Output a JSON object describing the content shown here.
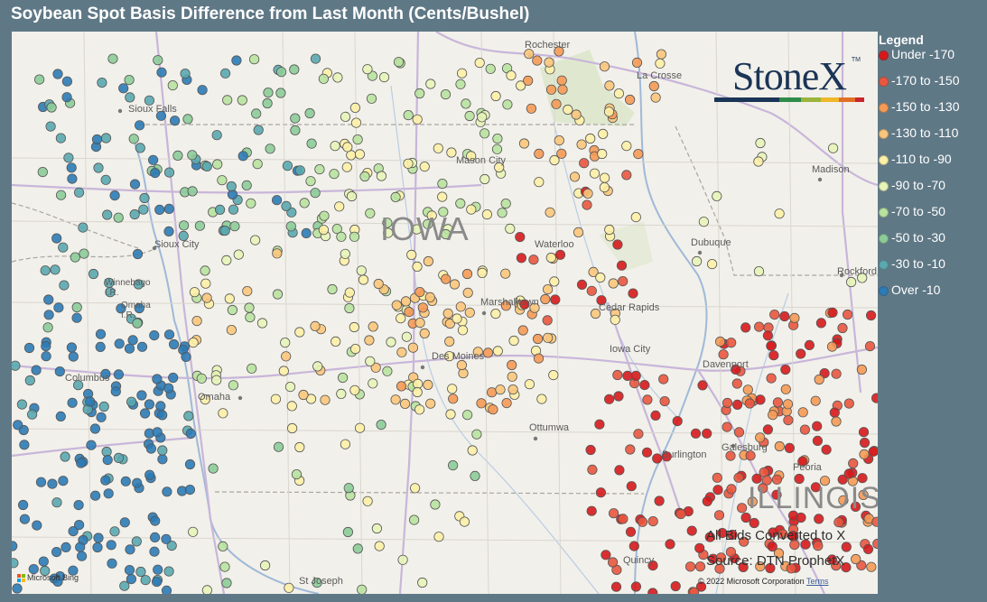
{
  "title": "Soybean Spot Basis Difference from Last Month (Cents/Bushel)",
  "legend": {
    "title": "Legend",
    "items": [
      {
        "label": "Under -170",
        "color": "#d7191c"
      },
      {
        "label": "-170 to -150",
        "color": "#e9573f"
      },
      {
        "label": "-150 to -130",
        "color": "#f59a55"
      },
      {
        "label": "-130 to -110",
        "color": "#fbc67b"
      },
      {
        "label": "-110 to -90",
        "color": "#fdf0a7"
      },
      {
        "label": "-90 to -70",
        "color": "#e7f4b8"
      },
      {
        "label": "-70 to -50",
        "color": "#b9e2a0"
      },
      {
        "label": "-50 to -30",
        "color": "#8ccc99"
      },
      {
        "label": "-30 to -10",
        "color": "#5aa8b0"
      },
      {
        "label": "Over -10",
        "color": "#2c7bb6"
      }
    ]
  },
  "logo": {
    "text": "StoneX",
    "tm": "TM"
  },
  "map": {
    "states": [
      "IOWA",
      "ILLINOIS"
    ],
    "places": [
      {
        "name": "Rochester"
      },
      {
        "name": "La Crosse"
      },
      {
        "name": "Mason City"
      },
      {
        "name": "Madison"
      },
      {
        "name": "Waterloo"
      },
      {
        "name": "Dubuque"
      },
      {
        "name": "Rockford"
      },
      {
        "name": "Sioux City"
      },
      {
        "name": "Sioux Falls"
      },
      {
        "name": "Winnebago I.R."
      },
      {
        "name": "Omaha I.R."
      },
      {
        "name": "Marshalltown"
      },
      {
        "name": "Cedar Rapids"
      },
      {
        "name": "Iowa City"
      },
      {
        "name": "Davenport"
      },
      {
        "name": "Des Moines"
      },
      {
        "name": "Columbus"
      },
      {
        "name": "Omaha"
      },
      {
        "name": "Ottumwa"
      },
      {
        "name": "Galesburg"
      },
      {
        "name": "Burlington"
      },
      {
        "name": "Peoria"
      },
      {
        "name": "Quincy"
      },
      {
        "name": "St Joseph"
      }
    ],
    "notes": [
      "All Bids Converted to X",
      "Source: DTN ProphetX"
    ],
    "attribution": "Microsoft Bing",
    "copyright": "© 2022 Microsoft Corporation",
    "terms": "Terms"
  }
}
